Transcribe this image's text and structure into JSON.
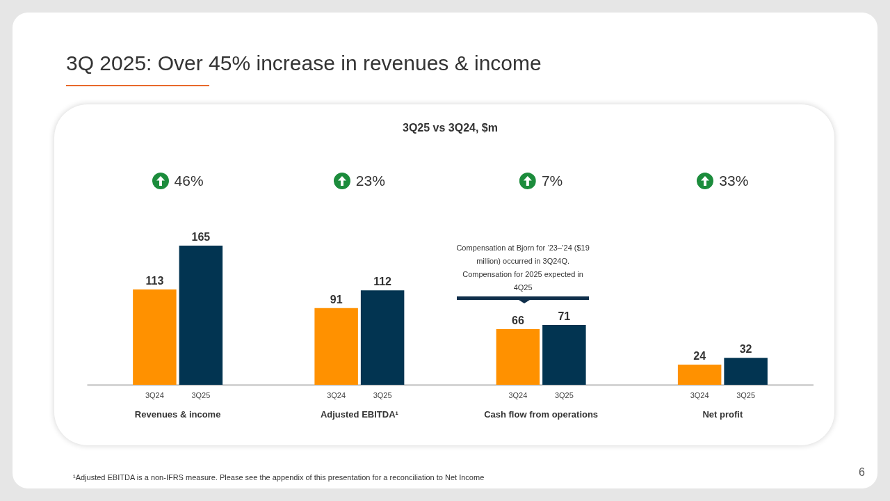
{
  "chart_data": {
    "type": "bar",
    "title": "3Q 2025: Over 45% increase in revenues & income",
    "subtitle": "3Q25 vs 3Q24, $m",
    "categories": [
      "Revenues & income",
      "Adjusted EBITDA¹",
      "Cash flow from operations",
      "Net profit"
    ],
    "series": [
      {
        "name": "3Q24",
        "color": "#ff9100",
        "values": [
          113,
          91,
          66,
          24
        ]
      },
      {
        "name": "3Q25",
        "color": "#023451",
        "values": [
          165,
          112,
          71,
          32
        ]
      }
    ],
    "data_labels": true,
    "legend": false,
    "grid": false,
    "annotations": [
      "46%",
      "23%",
      "7%",
      "33%",
      "Compensation at Bjorn for ‘23–’24 ($19 million) occurred in 3Q24Q. Compensation for 2025 expected in 4Q25",
      "¹Adjusted EBITDA is a non-IFRS measure. Please see the appendix of this presentation for a reconciliation to Net Income",
      "6"
    ]
  }
}
